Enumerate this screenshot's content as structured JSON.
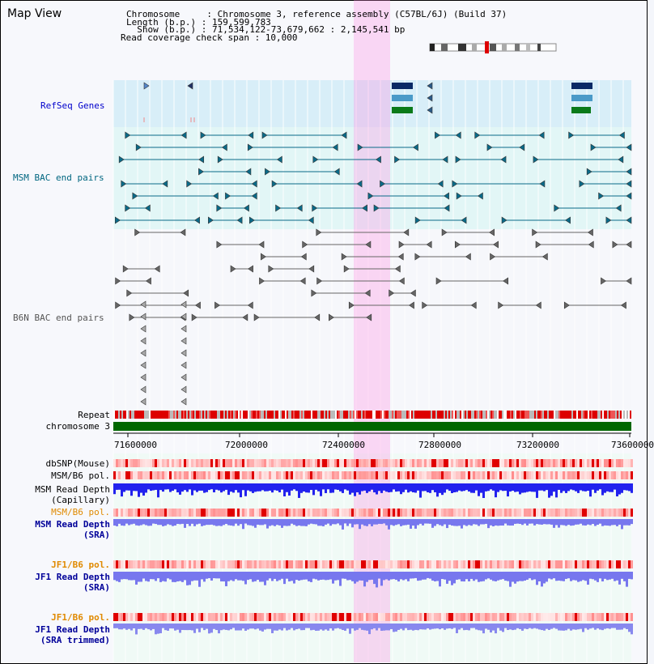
{
  "map_view": {
    "title": "Map View",
    "chromosome_line": "Chromosome     : Chromosome 3, reference assembly (C57BL/6J) (Build 37)",
    "length_line": "Length (b.p.) : 159,599,783",
    "show_line": "  Show (b.p.) : 71,534,122-73,679,662 : 2,145,541 bp",
    "coverage_line": "Read coverage check span : 10,000"
  },
  "tracks": {
    "refseq": "RefSeq Genes",
    "msm_bac": "MSM BAC end pairs",
    "b6n_bac": "B6N BAC end pairs",
    "repeat": "Repeat",
    "chromosome": "chromosome 3",
    "dbsnp": "dbSNP(Mouse)",
    "msm_b6_pol_1": "MSM/B6 pol.",
    "msm_read_depth_cap": "MSM Read Depth\n (Capillary)",
    "msm_b6_pol_2": "MSM/B6 pol.",
    "msm_read_depth_sra": "MSM Read Depth\n (SRA)",
    "jf1_b6_pol_1": "JF1/B6 pol.",
    "jf1_read_depth_sra": "JF1 Read Depth\n (SRA)",
    "jf1_b6_pol_2": "JF1/B6 pol.",
    "jf1_read_depth_trim": "JF1 Read Depth\n (SRA trimmed)"
  },
  "axis": {
    "ticks": [
      "71600000",
      "72000000",
      "72400000",
      "72800000",
      "73200000",
      "73600000"
    ]
  },
  "colors": {
    "refseq_label": "#0000cc",
    "msm_label": "#006680",
    "b6n_label": "#555555",
    "orange_label": "#e08a00",
    "blue_label": "#000099",
    "highlight": "#ff88e0",
    "chrom_bar": "#006600"
  }
}
